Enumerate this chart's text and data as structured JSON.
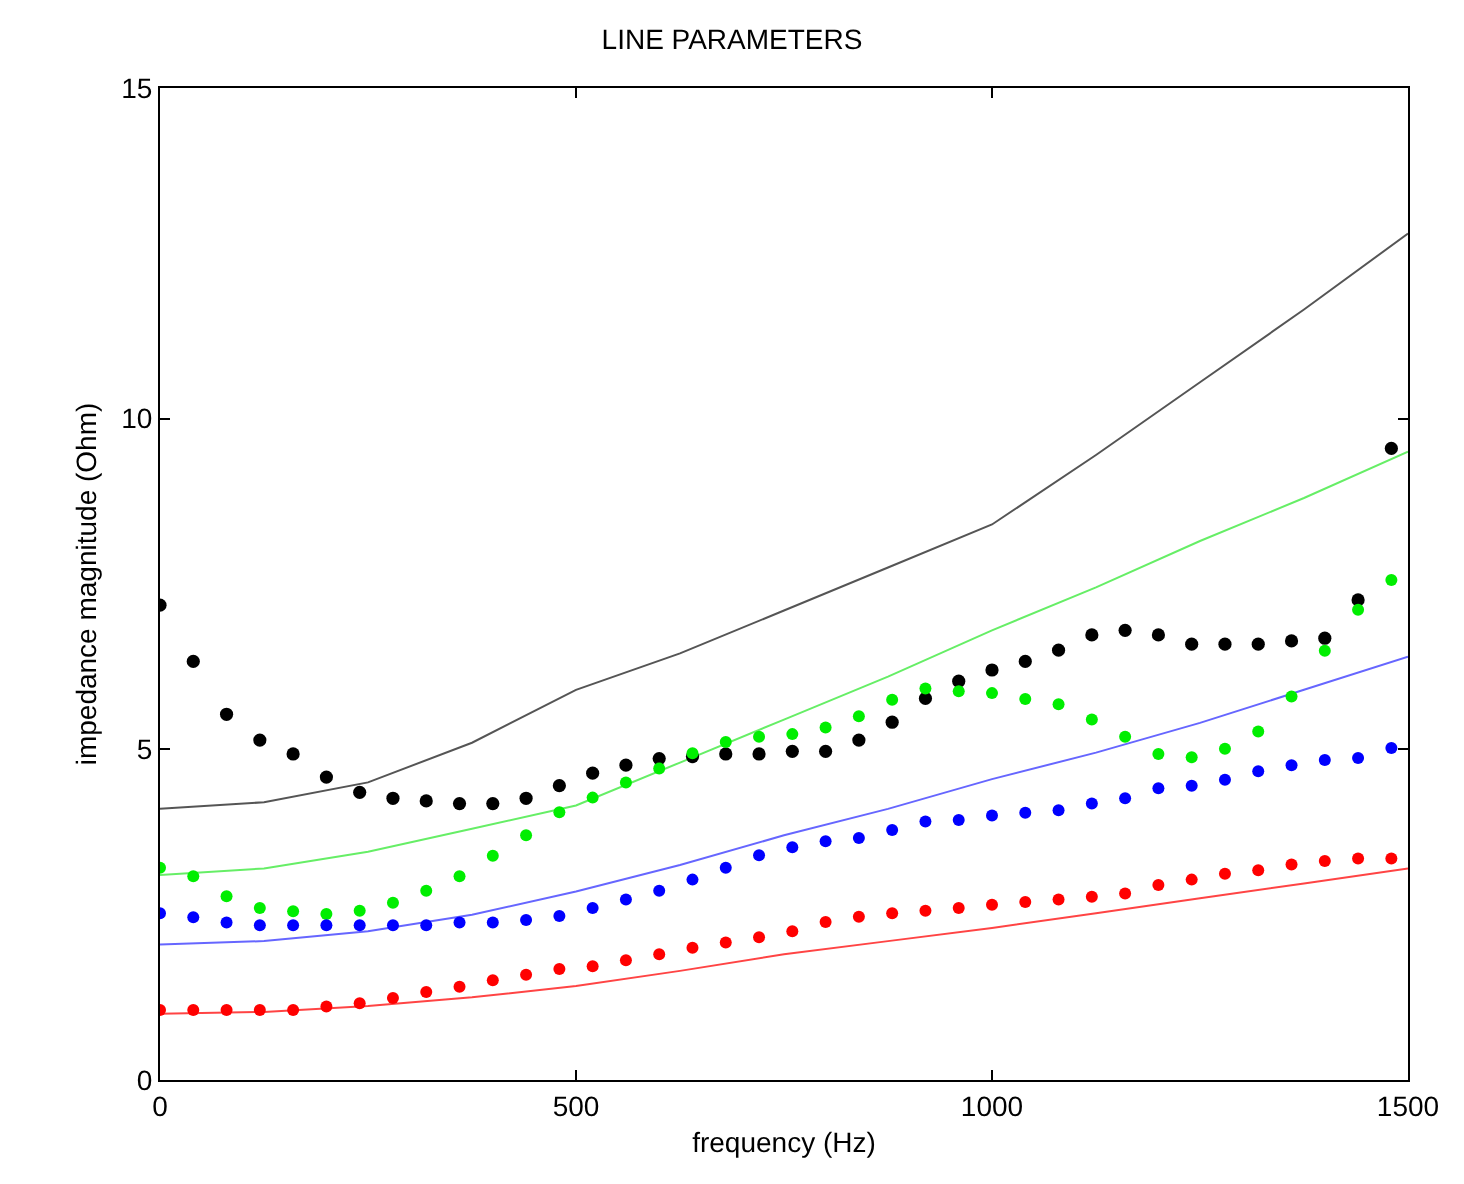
{
  "chart_data": {
    "type": "scatter",
    "title": "LINE PARAMETERS",
    "xlabel": "frequency (Hz)",
    "ylabel": "impedance magnitude (Ohm)",
    "xlim": [
      0,
      1500
    ],
    "xticks": [
      0,
      500,
      1000,
      1500
    ],
    "ylim": [
      0,
      15
    ],
    "yticks": [
      0,
      5,
      10,
      15
    ],
    "series": [
      {
        "type": "line",
        "marker": "none",
        "color": "#555555",
        "x": [
          0,
          125,
          250,
          375,
          500,
          625,
          750,
          875,
          1000,
          1125,
          1250,
          1375,
          1500
        ],
        "values": [
          4.1,
          4.2,
          4.5,
          5.1,
          5.9,
          6.45,
          7.1,
          7.75,
          8.4,
          9.45,
          10.55,
          11.65,
          12.8
        ]
      },
      {
        "type": "line",
        "marker": "none",
        "color": "#66ee66",
        "x": [
          0,
          125,
          250,
          375,
          500,
          625,
          750,
          875,
          1000,
          1125,
          1250,
          1375,
          1500
        ],
        "values": [
          3.1,
          3.2,
          3.45,
          3.8,
          4.15,
          4.8,
          5.45,
          6.1,
          6.8,
          7.45,
          8.15,
          8.8,
          9.5
        ]
      },
      {
        "type": "line",
        "marker": "none",
        "color": "#6666ff",
        "x": [
          0,
          125,
          250,
          375,
          500,
          625,
          750,
          875,
          1000,
          1125,
          1250,
          1375,
          1500
        ],
        "values": [
          2.05,
          2.1,
          2.25,
          2.5,
          2.85,
          3.25,
          3.7,
          4.1,
          4.55,
          4.95,
          5.4,
          5.9,
          6.4
        ]
      },
      {
        "type": "line",
        "marker": "none",
        "color": "#ff4444",
        "x": [
          0,
          125,
          250,
          375,
          500,
          625,
          750,
          875,
          1000,
          1125,
          1250,
          1375,
          1500
        ],
        "values": [
          1.0,
          1.03,
          1.12,
          1.25,
          1.42,
          1.65,
          1.9,
          2.1,
          2.3,
          2.52,
          2.75,
          2.97,
          3.2
        ]
      },
      {
        "marker": "circle",
        "color": "#000000",
        "x": [
          0,
          40,
          80,
          120,
          160,
          200,
          240,
          280,
          320,
          360,
          400,
          440,
          480,
          520,
          560,
          600,
          640,
          680,
          720,
          760,
          800,
          840,
          880,
          920,
          960,
          1000,
          1040,
          1080,
          1120,
          1160,
          1200,
          1240,
          1280,
          1320,
          1360,
          1400,
          1440,
          1480
        ],
        "values": [
          7.18,
          6.33,
          5.53,
          5.14,
          4.93,
          4.58,
          4.35,
          4.26,
          4.22,
          4.18,
          4.18,
          4.26,
          4.45,
          4.64,
          4.76,
          4.86,
          4.89,
          4.93,
          4.93,
          4.97,
          4.97,
          5.14,
          5.41,
          5.77,
          6.03,
          6.2,
          6.33,
          6.5,
          6.73,
          6.8,
          6.73,
          6.59,
          6.59,
          6.59,
          6.64,
          6.68,
          7.26,
          9.55
        ]
      },
      {
        "marker": "circle",
        "color": "#00ee00",
        "x": [
          0,
          40,
          80,
          120,
          160,
          200,
          240,
          280,
          320,
          360,
          400,
          440,
          480,
          520,
          560,
          600,
          640,
          680,
          720,
          760,
          800,
          840,
          880,
          920,
          960,
          1000,
          1040,
          1080,
          1120,
          1160,
          1200,
          1240,
          1280,
          1320,
          1360,
          1400,
          1440,
          1480
        ],
        "values": [
          3.21,
          3.08,
          2.78,
          2.6,
          2.55,
          2.51,
          2.56,
          2.68,
          2.86,
          3.08,
          3.39,
          3.7,
          4.05,
          4.27,
          4.5,
          4.71,
          4.94,
          5.11,
          5.19,
          5.23,
          5.33,
          5.5,
          5.75,
          5.92,
          5.88,
          5.85,
          5.76,
          5.68,
          5.45,
          5.19,
          4.93,
          4.88,
          5.01,
          5.27,
          5.8,
          6.49,
          7.11,
          7.56
        ]
      },
      {
        "marker": "circle",
        "color": "#0000ff",
        "x": [
          0,
          40,
          80,
          120,
          160,
          200,
          240,
          280,
          320,
          360,
          400,
          440,
          480,
          520,
          560,
          600,
          640,
          680,
          720,
          760,
          800,
          840,
          880,
          920,
          960,
          1000,
          1040,
          1080,
          1120,
          1160,
          1200,
          1240,
          1280,
          1320,
          1360,
          1400,
          1440,
          1480
        ],
        "values": [
          2.52,
          2.46,
          2.38,
          2.34,
          2.34,
          2.34,
          2.34,
          2.34,
          2.34,
          2.38,
          2.38,
          2.42,
          2.48,
          2.6,
          2.73,
          2.86,
          3.03,
          3.21,
          3.4,
          3.52,
          3.61,
          3.66,
          3.78,
          3.91,
          3.93,
          4.0,
          4.04,
          4.08,
          4.18,
          4.26,
          4.41,
          4.45,
          4.54,
          4.67,
          4.76,
          4.84,
          4.87,
          5.02
        ]
      },
      {
        "marker": "circle",
        "color": "#ff0000",
        "x": [
          0,
          40,
          80,
          120,
          160,
          200,
          240,
          280,
          320,
          360,
          400,
          440,
          480,
          520,
          560,
          600,
          640,
          680,
          720,
          760,
          800,
          840,
          880,
          920,
          960,
          1000,
          1040,
          1080,
          1120,
          1160,
          1200,
          1240,
          1280,
          1320,
          1360,
          1400,
          1440,
          1480
        ],
        "values": [
          1.06,
          1.06,
          1.06,
          1.06,
          1.06,
          1.11,
          1.16,
          1.24,
          1.33,
          1.41,
          1.51,
          1.59,
          1.68,
          1.72,
          1.81,
          1.9,
          2.0,
          2.08,
          2.16,
          2.25,
          2.39,
          2.47,
          2.52,
          2.56,
          2.6,
          2.65,
          2.69,
          2.73,
          2.77,
          2.82,
          2.95,
          3.03,
          3.12,
          3.17,
          3.26,
          3.31,
          3.35,
          3.35
        ]
      }
    ]
  }
}
